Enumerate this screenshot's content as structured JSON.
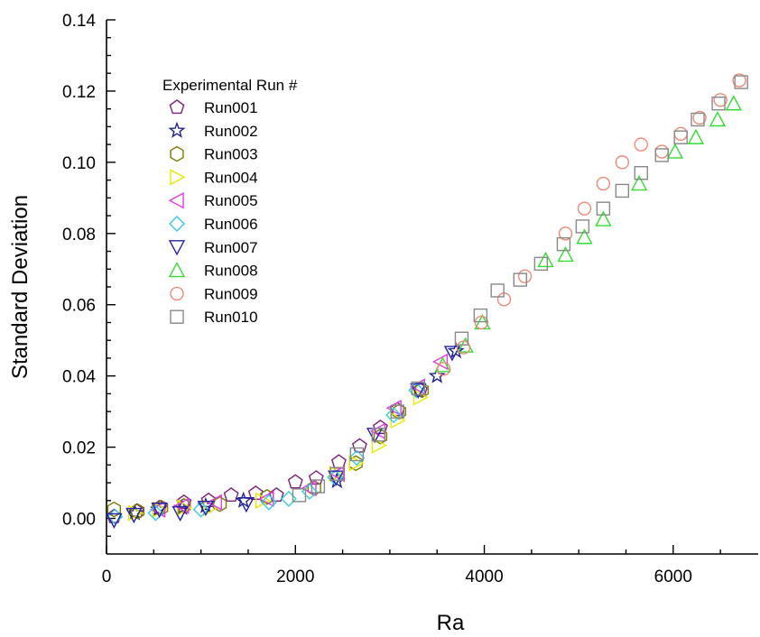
{
  "chart_data": {
    "type": "scatter",
    "xlabel": "Ra",
    "ylabel": "Standard Deviation",
    "xlim": [
      0,
      6900
    ],
    "ylim": [
      -0.01,
      0.14
    ],
    "xticks": [
      0,
      2000,
      4000,
      6000
    ],
    "xtick_labels": [
      "0",
      "2000",
      "4000",
      "6000"
    ],
    "yticks": [
      0.0,
      0.02,
      0.04,
      0.06,
      0.08,
      0.1,
      0.12,
      0.14
    ],
    "ytick_labels": [
      "0.00",
      "0.02",
      "0.04",
      "0.06",
      "0.08",
      "0.10",
      "0.12",
      "0.14"
    ],
    "grid": false,
    "legend": {
      "title": "Experimental Run #",
      "placement": "top-left"
    },
    "series": [
      {
        "name": "Run001",
        "marker": "pentagon",
        "color": "#7b1f7b",
        "x": [
          80,
          320,
          560,
          820,
          1080,
          1320,
          1580,
          1800,
          2000,
          2220,
          2460,
          2680,
          2900,
          3080,
          3320
        ],
        "y": [
          0.0005,
          0.002,
          0.003,
          0.0045,
          0.005,
          0.0065,
          0.007,
          0.0065,
          0.0102,
          0.0113,
          0.0158,
          0.0203,
          0.0255,
          0.0305,
          0.036
        ]
      },
      {
        "name": "Run002",
        "marker": "star",
        "color": "#1f1f8f",
        "x": [
          300,
          550,
          800,
          1050,
          1450,
          2440,
          3500,
          3700
        ],
        "y": [
          0.0015,
          0.0025,
          0.003,
          0.0035,
          0.005,
          0.0105,
          0.04,
          0.047
        ]
      },
      {
        "name": "Run003",
        "marker": "hexagon",
        "color": "#7a7a00",
        "x": [
          80,
          330,
          580,
          820,
          1200,
          1700,
          2200,
          2640,
          2900,
          3100,
          3340
        ],
        "y": [
          0.0025,
          0.002,
          0.003,
          0.0035,
          0.004,
          0.006,
          0.0085,
          0.0155,
          0.023,
          0.03,
          0.036
        ]
      },
      {
        "name": "Run004",
        "marker": "triangle-right",
        "color": "#e8e800",
        "x": [
          300,
          560,
          820,
          1100,
          1650,
          2430,
          2640,
          2880,
          3080,
          3320
        ],
        "y": [
          0.0015,
          0.0025,
          0.003,
          0.003,
          0.005,
          0.0125,
          0.0155,
          0.0205,
          0.0275,
          0.034
        ]
      },
      {
        "name": "Run005",
        "marker": "triangle-left",
        "color": "#e03ee0",
        "x": [
          550,
          800,
          1150,
          1700,
          2150,
          2450,
          2880,
          3050,
          3300,
          3540
        ],
        "y": [
          0.0025,
          0.0035,
          0.0045,
          0.0055,
          0.0085,
          0.0125,
          0.0245,
          0.031,
          0.037,
          0.044
        ]
      },
      {
        "name": "Run006",
        "marker": "diamond",
        "color": "#33ccdd",
        "x": [
          90,
          520,
          1000,
          1720,
          1930,
          2150,
          2420,
          2650,
          3040,
          3280
        ],
        "y": [
          0.0005,
          0.0015,
          0.0025,
          0.0045,
          0.0055,
          0.0075,
          0.0115,
          0.017,
          0.029,
          0.036
        ]
      },
      {
        "name": "Run007",
        "marker": "triangle-down",
        "color": "#2222aa",
        "x": [
          80,
          290,
          560,
          780,
          1050,
          1480,
          2430,
          2840,
          3300,
          3660
        ],
        "y": [
          -0.0005,
          0.001,
          0.0025,
          0.0015,
          0.003,
          0.004,
          0.0115,
          0.0235,
          0.036,
          0.0465
        ]
      },
      {
        "name": "Run008",
        "marker": "triangle-up",
        "color": "#33dd33",
        "x": [
          3560,
          3800,
          3980,
          4650,
          4860,
          5060,
          5260,
          5640,
          6020,
          6240,
          6470,
          6640
        ],
        "y": [
          0.043,
          0.0485,
          0.055,
          0.0725,
          0.074,
          0.079,
          0.084,
          0.094,
          0.103,
          0.107,
          0.112,
          0.1165
        ]
      },
      {
        "name": "Run009",
        "marker": "circle",
        "color": "#ee8877",
        "x": [
          3570,
          3780,
          3970,
          4210,
          4430,
          4860,
          5060,
          5260,
          5460,
          5660,
          5880,
          6080,
          6280,
          6500,
          6700
        ],
        "y": [
          0.042,
          0.048,
          0.055,
          0.0615,
          0.068,
          0.08,
          0.087,
          0.094,
          0.1,
          0.105,
          0.103,
          0.108,
          0.1125,
          0.1175,
          0.123
        ]
      },
      {
        "name": "Run010",
        "marker": "square",
        "color": "#888888",
        "x": [
          2040,
          2240,
          2440,
          2650,
          2880,
          3080,
          3300,
          3760,
          3960,
          4140,
          4380,
          4600,
          4840,
          5040,
          5260,
          5460,
          5660,
          5880,
          6080,
          6260,
          6480,
          6720
        ],
        "y": [
          0.0065,
          0.009,
          0.0125,
          0.018,
          0.0235,
          0.03,
          0.0365,
          0.0505,
          0.057,
          0.064,
          0.067,
          0.0715,
          0.077,
          0.082,
          0.087,
          0.092,
          0.097,
          0.102,
          0.107,
          0.112,
          0.1165,
          0.1225
        ]
      }
    ]
  }
}
